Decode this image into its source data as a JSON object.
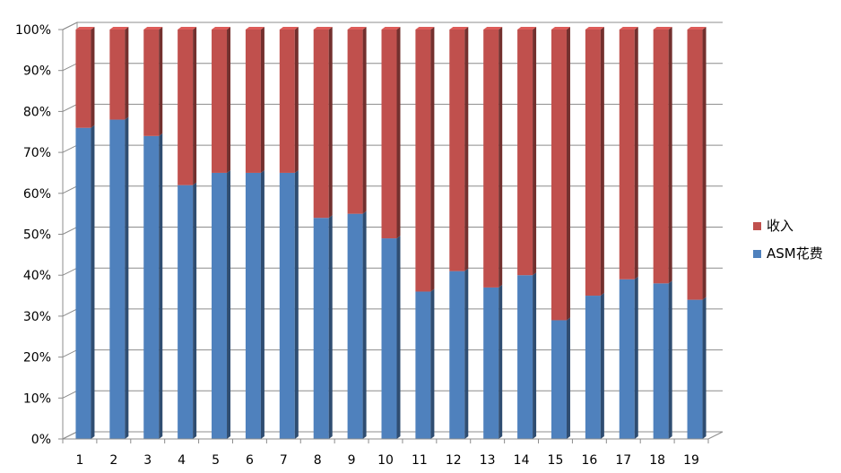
{
  "chart_data": {
    "type": "bar",
    "stacked": "percent",
    "style": "3d",
    "categories": [
      "1",
      "2",
      "3",
      "4",
      "5",
      "6",
      "7",
      "8",
      "9",
      "10",
      "11",
      "12",
      "13",
      "14",
      "15",
      "16",
      "17",
      "18",
      "19"
    ],
    "series": [
      {
        "name": "ASM花费",
        "color": "#4F81BD",
        "values": [
          76,
          78,
          74,
          62,
          65,
          65,
          65,
          54,
          55,
          49,
          36,
          41,
          37,
          40,
          29,
          35,
          39,
          38,
          34
        ]
      },
      {
        "name": "收入",
        "color": "#C0504D",
        "values": [
          24,
          22,
          26,
          38,
          35,
          35,
          35,
          46,
          45,
          51,
          64,
          59,
          63,
          60,
          71,
          65,
          61,
          62,
          66
        ]
      }
    ],
    "y_ticks": [
      "0%",
      "10%",
      "20%",
      "30%",
      "40%",
      "50%",
      "60%",
      "70%",
      "80%",
      "90%",
      "100%"
    ],
    "ylim": [
      0,
      100
    ],
    "grid": true,
    "legend": "right"
  }
}
